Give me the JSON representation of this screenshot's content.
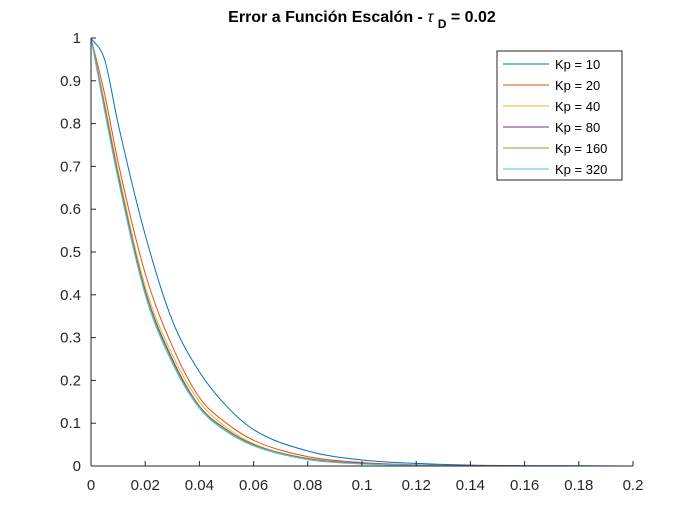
{
  "chart_data": {
    "type": "line",
    "title": {
      "prefix": "Error a Función Escalón - ",
      "symbol": "τ",
      "subscript": "D",
      "suffix": " = 0.02"
    },
    "xlabel": "",
    "ylabel": "",
    "xlim": [
      0,
      0.2
    ],
    "ylim": [
      0,
      1
    ],
    "xticks": [
      0,
      0.02,
      0.04,
      0.06,
      0.08,
      0.1,
      0.12,
      0.14,
      0.16,
      0.18,
      0.2
    ],
    "xtick_labels": [
      "0",
      "0.02",
      "0.04",
      "0.06",
      "0.08",
      "0.1",
      "0.12",
      "0.14",
      "0.16",
      "0.18",
      "0.2"
    ],
    "yticks": [
      0,
      0.1,
      0.2,
      0.3,
      0.4,
      0.5,
      0.6,
      0.7,
      0.8,
      0.9,
      1
    ],
    "ytick_labels": [
      "0",
      "0.1",
      "0.2",
      "0.3",
      "0.4",
      "0.5",
      "0.6",
      "0.7",
      "0.8",
      "0.9",
      "1"
    ],
    "grid": false,
    "legend_position": "top-right",
    "x": [
      0,
      0.005,
      0.01,
      0.02,
      0.03,
      0.04,
      0.05,
      0.06,
      0.08,
      0.1,
      0.12,
      0.14,
      0.16,
      0.2
    ],
    "series": [
      {
        "name": "Kp = 10",
        "color": "#0072BD",
        "values": [
          1,
          0.95,
          0.8,
          0.54,
          0.34,
          0.22,
          0.14,
          0.085,
          0.035,
          0.014,
          0.006,
          0.002,
          0.001,
          0
        ]
      },
      {
        "name": "Kp = 20",
        "color": "#D95319",
        "values": [
          1,
          0.87,
          0.71,
          0.45,
          0.28,
          0.16,
          0.1,
          0.06,
          0.022,
          0.008,
          0.003,
          0.001,
          0,
          0
        ]
      },
      {
        "name": "Kp = 40",
        "color": "#EDB120",
        "values": [
          1,
          0.85,
          0.69,
          0.42,
          0.26,
          0.15,
          0.09,
          0.052,
          0.018,
          0.006,
          0.002,
          0.001,
          0,
          0
        ]
      },
      {
        "name": "Kp = 80",
        "color": "#7E2F8E",
        "values": [
          1,
          0.84,
          0.68,
          0.41,
          0.25,
          0.14,
          0.085,
          0.05,
          0.017,
          0.006,
          0.002,
          0.001,
          0,
          0
        ]
      },
      {
        "name": "Kp = 160",
        "color": "#77AC30",
        "values": [
          1,
          0.835,
          0.675,
          0.405,
          0.245,
          0.138,
          0.083,
          0.049,
          0.016,
          0.005,
          0.002,
          0,
          0,
          0
        ]
      },
      {
        "name": "Kp = 320",
        "color": "#4DBEEE",
        "values": [
          1,
          0.83,
          0.67,
          0.4,
          0.24,
          0.135,
          0.08,
          0.047,
          0.015,
          0.005,
          0.002,
          0,
          0,
          0
        ]
      }
    ]
  }
}
